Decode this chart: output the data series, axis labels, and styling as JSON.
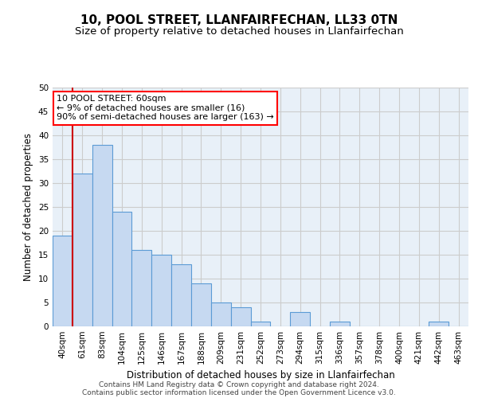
{
  "title": "10, POOL STREET, LLANFAIRFECHAN, LL33 0TN",
  "subtitle": "Size of property relative to detached houses in Llanfairfechan",
  "xlabel": "Distribution of detached houses by size in Llanfairfechan",
  "ylabel": "Number of detached properties",
  "categories": [
    "40sqm",
    "61sqm",
    "83sqm",
    "104sqm",
    "125sqm",
    "146sqm",
    "167sqm",
    "188sqm",
    "209sqm",
    "231sqm",
    "252sqm",
    "273sqm",
    "294sqm",
    "315sqm",
    "336sqm",
    "357sqm",
    "378sqm",
    "400sqm",
    "421sqm",
    "442sqm",
    "463sqm"
  ],
  "values": [
    19,
    32,
    38,
    24,
    16,
    15,
    13,
    9,
    5,
    4,
    1,
    0,
    3,
    0,
    1,
    0,
    0,
    0,
    0,
    1,
    0
  ],
  "bar_color": "#c6d9f1",
  "bar_edge_color": "#5b9bd5",
  "annotation_text": "10 POOL STREET: 60sqm\n← 9% of detached houses are smaller (16)\n90% of semi-detached houses are larger (163) →",
  "annotation_box_color": "white",
  "annotation_box_edge_color": "red",
  "red_line_color": "#cc0000",
  "ylim": [
    0,
    50
  ],
  "yticks": [
    0,
    5,
    10,
    15,
    20,
    25,
    30,
    35,
    40,
    45,
    50
  ],
  "grid_color": "#cccccc",
  "bg_color": "#e8f0f8",
  "footer_line1": "Contains HM Land Registry data © Crown copyright and database right 2024.",
  "footer_line2": "Contains public sector information licensed under the Open Government Licence v3.0.",
  "title_fontsize": 11,
  "subtitle_fontsize": 9.5,
  "axis_label_fontsize": 8.5,
  "tick_fontsize": 7.5,
  "annot_fontsize": 8
}
